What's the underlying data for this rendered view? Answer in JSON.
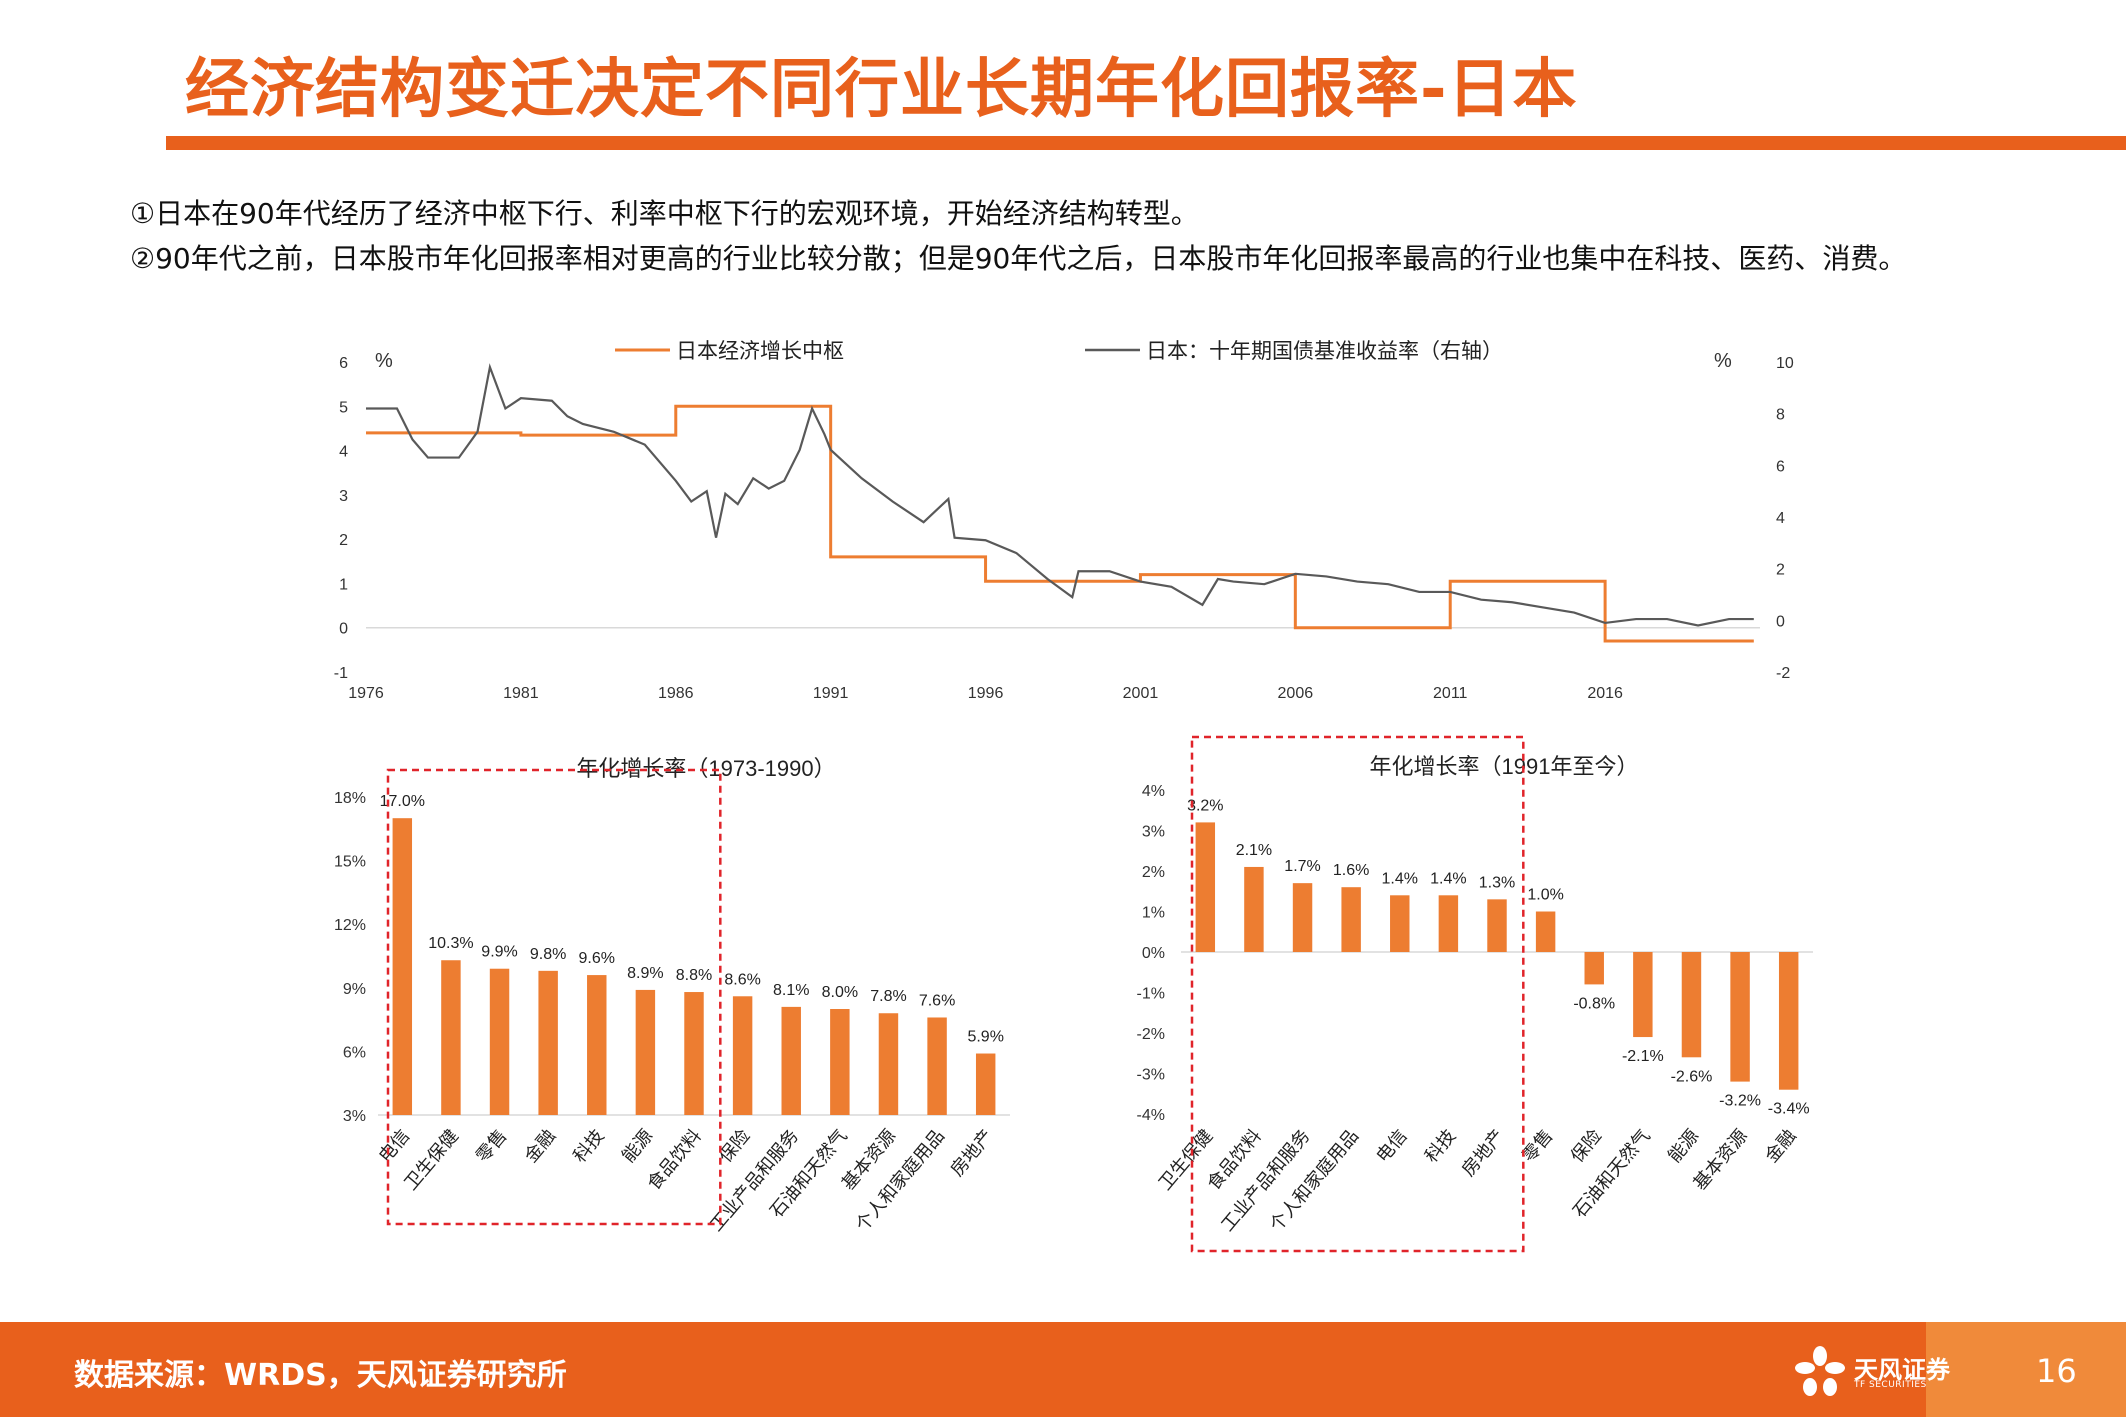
{
  "title": "经济结构变迁决定不同行业长期年化回报率-日本",
  "bullets": [
    "①日本在90年代经历了经济中枢下行、利率中枢下行的宏观环境，开始经济结构转型。",
    "②90年代之前，日本股市年化回报率相对更高的行业比较分散；但是90年代之后，日本股市年化回报率最高的行业也集中在科技、医药、消费。"
  ],
  "colors": {
    "accent": "#e8601c",
    "bar": "#ed7d31",
    "line": "#595959",
    "highlight": "#e0242a"
  },
  "footer": {
    "source": "数据来源：WRDS，天风证券研究所",
    "logo": "天风证券",
    "logo_sub": "TF SECURITIES",
    "page": "16"
  },
  "chart_data": [
    {
      "type": "line",
      "title": "",
      "left_unit": "%",
      "right_unit": "%",
      "x_ticks": [
        "1976",
        "1981",
        "1986",
        "1991",
        "1996",
        "2001",
        "2006",
        "2011",
        "2016"
      ],
      "left_ylim": [
        -1,
        6
      ],
      "left_ticks": [
        "6",
        "5",
        "4",
        "3",
        "2",
        "1",
        "0",
        "-1"
      ],
      "right_ylim": [
        -2,
        10
      ],
      "right_ticks": [
        "10",
        "8",
        "6",
        "4",
        "2",
        "0",
        "-2"
      ],
      "series": [
        {
          "name": "日本经济增长中枢",
          "axis": "left",
          "step": true,
          "points": [
            [
              1976,
              4.4
            ],
            [
              1981,
              4.35
            ],
            [
              1986,
              5.0
            ],
            [
              1991,
              1.6
            ],
            [
              1996,
              1.05
            ],
            [
              2001,
              1.2
            ],
            [
              2006,
              0.0
            ],
            [
              2011,
              1.05
            ],
            [
              2016,
              -0.3
            ],
            [
              2020.8,
              -0.3
            ]
          ]
        },
        {
          "name": "日本：十年期国债基准收益率（右轴）",
          "axis": "right",
          "step": false,
          "points": [
            [
              1976,
              8.2
            ],
            [
              1977,
              8.2
            ],
            [
              1977.5,
              7.0
            ],
            [
              1978,
              6.3
            ],
            [
              1979,
              6.3
            ],
            [
              1979.6,
              7.3
            ],
            [
              1980,
              9.8
            ],
            [
              1980.5,
              8.2
            ],
            [
              1981,
              8.6
            ],
            [
              1982,
              8.5
            ],
            [
              1982.5,
              7.9
            ],
            [
              1983,
              7.6
            ],
            [
              1984,
              7.3
            ],
            [
              1985,
              6.8
            ],
            [
              1986,
              5.4
            ],
            [
              1986.5,
              4.6
            ],
            [
              1987,
              5.0
            ],
            [
              1987.3,
              3.2
            ],
            [
              1987.6,
              4.9
            ],
            [
              1988,
              4.5
            ],
            [
              1988.5,
              5.5
            ],
            [
              1989,
              5.1
            ],
            [
              1989.5,
              5.4
            ],
            [
              1990,
              6.6
            ],
            [
              1990.4,
              8.2
            ],
            [
              1990.8,
              7.2
            ],
            [
              1991,
              6.6
            ],
            [
              1992,
              5.5
            ],
            [
              1993,
              4.6
            ],
            [
              1994,
              3.8
            ],
            [
              1994.8,
              4.7
            ],
            [
              1995,
              3.2
            ],
            [
              1996,
              3.1
            ],
            [
              1997,
              2.6
            ],
            [
              1998,
              1.6
            ],
            [
              1998.8,
              0.9
            ],
            [
              1999,
              1.9
            ],
            [
              2000,
              1.9
            ],
            [
              2001,
              1.5
            ],
            [
              2002,
              1.3
            ],
            [
              2003,
              0.6
            ],
            [
              2003.5,
              1.6
            ],
            [
              2004,
              1.5
            ],
            [
              2005,
              1.4
            ],
            [
              2006,
              1.8
            ],
            [
              2007,
              1.7
            ],
            [
              2008,
              1.5
            ],
            [
              2009,
              1.4
            ],
            [
              2010,
              1.1
            ],
            [
              2011,
              1.1
            ],
            [
              2012,
              0.8
            ],
            [
              2013,
              0.7
            ],
            [
              2014,
              0.5
            ],
            [
              2015,
              0.3
            ],
            [
              2016,
              -0.1
            ],
            [
              2017,
              0.05
            ],
            [
              2018,
              0.05
            ],
            [
              2019,
              -0.2
            ],
            [
              2020,
              0.05
            ],
            [
              2020.8,
              0.05
            ]
          ]
        }
      ]
    },
    {
      "type": "bar",
      "title": "年化增长率（1973-1990）",
      "categories": [
        "电信",
        "卫生保健",
        "零售",
        "金融",
        "科技",
        "能源",
        "食品饮料",
        "保险",
        "工业产品和服务",
        "石油和天然气",
        "基本资源",
        "个人和家庭用品",
        "房地产"
      ],
      "values": [
        17.0,
        10.3,
        9.9,
        9.8,
        9.6,
        8.9,
        8.8,
        8.6,
        8.1,
        8.0,
        7.8,
        7.6,
        5.9
      ],
      "labels": [
        "17.0%",
        "10.3%",
        "9.9%",
        "9.8%",
        "9.6%",
        "8.9%",
        "8.8%",
        "8.6%",
        "8.1%",
        "8.0%",
        "7.8%",
        "7.6%",
        "5.9%"
      ],
      "ylim": [
        3,
        18
      ],
      "y_ticks": [
        "18%",
        "15%",
        "12%",
        "9%",
        "6%",
        "3%"
      ],
      "highlight_count": 7
    },
    {
      "type": "bar",
      "title": "年化增长率（1991年至今）",
      "categories": [
        "卫生保健",
        "食品饮料",
        "工业产品和服务",
        "个人和家庭用品",
        "电信",
        "科技",
        "房地产",
        "零售",
        "保险",
        "石油和天然气",
        "能源",
        "基本资源",
        "金融"
      ],
      "values": [
        3.2,
        2.1,
        1.7,
        1.6,
        1.4,
        1.4,
        1.3,
        1.0,
        -0.8,
        -2.1,
        -2.6,
        -3.2,
        -3.4
      ],
      "labels": [
        "3.2%",
        "2.1%",
        "1.7%",
        "1.6%",
        "1.4%",
        "1.4%",
        "1.3%",
        "1.0%",
        "-0.8%",
        "-2.1%",
        "-2.6%",
        "-3.2%",
        "-3.4%"
      ],
      "ylim": [
        -4,
        4
      ],
      "y_ticks": [
        "4%",
        "3%",
        "2%",
        "1%",
        "0%",
        "-1%",
        "-2%",
        "-3%",
        "-4%"
      ],
      "highlight_count": 7
    }
  ]
}
